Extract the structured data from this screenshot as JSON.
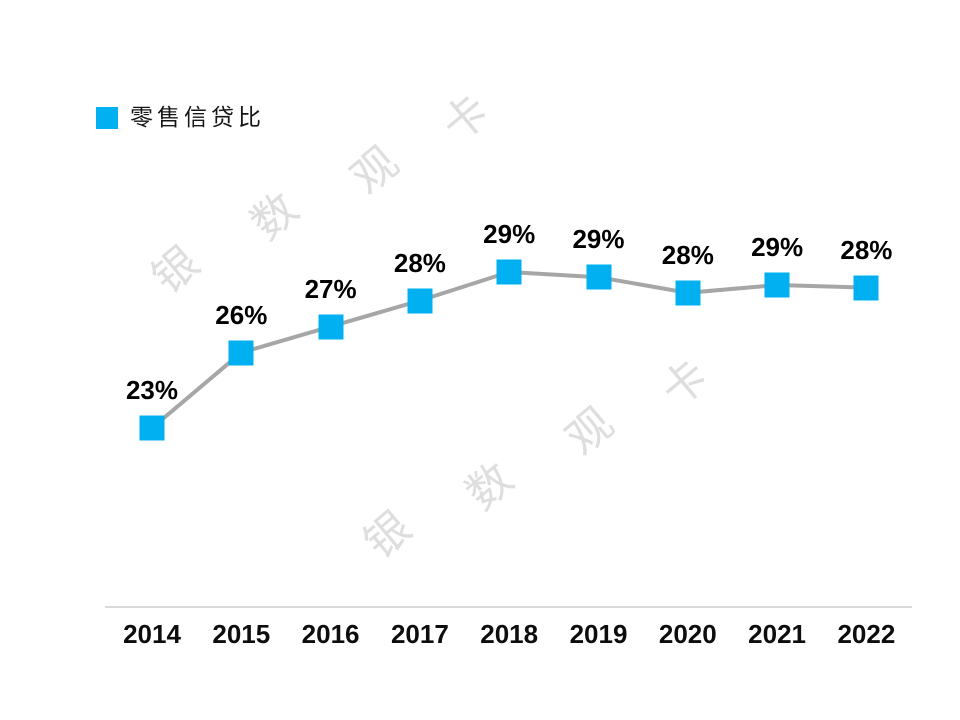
{
  "legend": {
    "label": "零售信贷比"
  },
  "watermark": {
    "text": "银数观卡"
  },
  "axis": {
    "line_color": "#d9d9d9"
  },
  "chart_data": {
    "type": "line",
    "title": "",
    "series_name": "零售信贷比",
    "categories": [
      "2014",
      "2015",
      "2016",
      "2017",
      "2018",
      "2019",
      "2020",
      "2021",
      "2022"
    ],
    "values": [
      23,
      25.9,
      26.9,
      27.9,
      29,
      28.8,
      28.2,
      28.5,
      28.4
    ],
    "labels": [
      "23%",
      "26%",
      "27%",
      "28%",
      "29%",
      "29%",
      "28%",
      "29%",
      "28%"
    ],
    "xlabel": "",
    "ylabel": "",
    "ylim_shown": "none (no value axis displayed)",
    "grid": false,
    "legend_position": "top-left",
    "marker_shape": "square",
    "marker_color": "#00b0f0",
    "line_color": "#a6a6a6",
    "label_color": "#000000",
    "watermark_color": "#dedede"
  }
}
